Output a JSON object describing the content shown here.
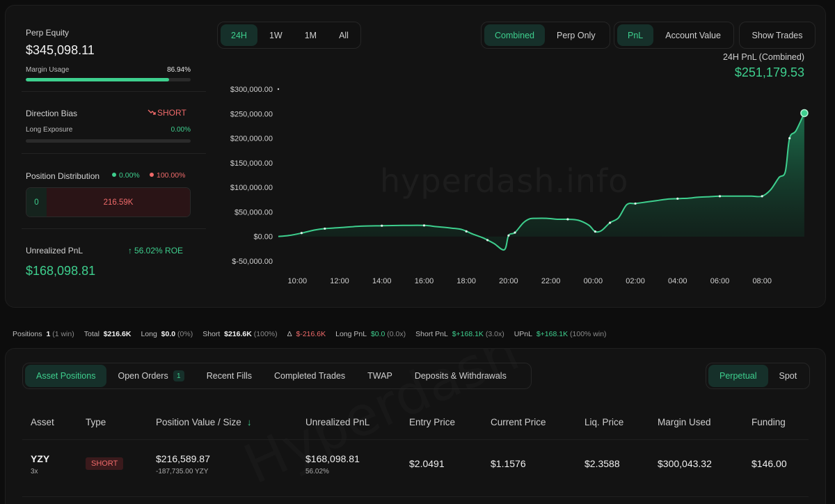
{
  "summary": {
    "perp_equity_label": "Perp Equity",
    "perp_equity_value": "$345,098.11",
    "margin_usage_label": "Margin Usage",
    "margin_usage_value": "86.94%",
    "margin_usage_fraction": 0.8694,
    "direction_bias_label": "Direction Bias",
    "direction_bias_value": "SHORT",
    "long_exposure_label": "Long Exposure",
    "long_exposure_value": "0.00%",
    "long_exposure_fraction": 0.0,
    "position_distribution_label": "Position Distribution",
    "dist_long_pct": "0.00%",
    "dist_short_pct": "100.00%",
    "dist_long_value": "0",
    "dist_short_value": "216.59K",
    "unrealized_pnl_label": "Unrealized PnL",
    "roe_label": "56.02% ROE",
    "unrealized_pnl_value": "$168,098.81"
  },
  "range_tabs": [
    "24H",
    "1W",
    "1M",
    "All"
  ],
  "view_tabs": [
    "Combined",
    "Perp Only"
  ],
  "metric_tabs": [
    "PnL",
    "Account Value"
  ],
  "show_trades_label": "Show Trades",
  "pnl_header": {
    "label": "24H PnL (Combined)",
    "value": "$251,179.53"
  },
  "watermark": "hyperdash.info",
  "colors": {
    "accent": "#3ecf8e",
    "negative": "#ef6a6a",
    "background": "#0d0d0d"
  },
  "chart_data": {
    "type": "area",
    "y_tick_labels": [
      "$300,000.00",
      "$250,000.00",
      "$200,000.00",
      "$150,000.00",
      "$100,000.00",
      "$50,000.00",
      "$0.00",
      "$-50,000.00"
    ],
    "y_ticks": [
      300000,
      250000,
      200000,
      150000,
      100000,
      50000,
      0,
      -50000
    ],
    "ylim": [
      -50000,
      300000
    ],
    "x_tick_labels": [
      "10:00",
      "12:00",
      "14:00",
      "16:00",
      "18:00",
      "20:00",
      "22:00",
      "00:00",
      "02:00",
      "04:00",
      "06:00",
      "08:00"
    ],
    "x_tick_hours": [
      10,
      12,
      14,
      16,
      18,
      20,
      22,
      24,
      26,
      28,
      30,
      32
    ],
    "xlim": [
      9.1,
      34.2
    ],
    "hours": [
      9.1,
      9.6,
      10.2,
      10.8,
      11.3,
      12.0,
      13.0,
      14.0,
      15.0,
      16.0,
      16.6,
      17.3,
      17.8,
      18.3,
      18.8,
      19.3,
      19.8,
      20.0,
      20.3,
      20.7,
      21.0,
      21.3,
      21.8,
      22.3,
      22.8,
      23.3,
      23.8,
      24.1,
      24.4,
      24.8,
      25.2,
      25.6,
      26.0,
      26.5,
      27.0,
      27.5,
      28.0,
      28.5,
      29.0,
      29.5,
      30.0,
      30.5,
      31.0,
      31.5,
      32.0,
      32.4,
      32.8,
      33.1,
      33.3,
      33.6,
      34.0
    ],
    "values": [
      0,
      2000,
      7000,
      13000,
      16000,
      18000,
      21000,
      22000,
      22500,
      22500,
      20000,
      17000,
      14000,
      5000,
      -3000,
      -14000,
      -27000,
      2000,
      8000,
      28000,
      36000,
      37000,
      37000,
      35000,
      35000,
      33000,
      23000,
      10000,
      12000,
      28000,
      38000,
      65000,
      67000,
      70000,
      73000,
      76000,
      77000,
      78000,
      80000,
      81000,
      82000,
      82000,
      82000,
      82000,
      82000,
      95000,
      120000,
      132000,
      200000,
      215000,
      251179.53
    ],
    "marker_hours": [
      10.2,
      11.3,
      14.0,
      16.0,
      18.0,
      19.0,
      20.0,
      20.3,
      22.8,
      24.1,
      24.8,
      26.0,
      28.0,
      30.0,
      32.0,
      33.3,
      34.0
    ],
    "grid": false,
    "legend": "none"
  },
  "stats_bar": {
    "positions_label": "Positions",
    "positions_value": "1",
    "positions_note": "(1 win)",
    "total_label": "Total",
    "total_value": "$216.6K",
    "long_label": "Long",
    "long_value": "$0.0",
    "long_note": "(0%)",
    "short_label": "Short",
    "short_value": "$216.6K",
    "short_note": "(100%)",
    "delta_label": "Δ",
    "delta_value": "$-216.6K",
    "long_pnl_label": "Long PnL",
    "long_pnl_value": "$0.0",
    "long_pnl_note": "(0.0x)",
    "short_pnl_label": "Short PnL",
    "short_pnl_value": "$+168.1K",
    "short_pnl_note": "(3.0x)",
    "upnl_label": "UPnL",
    "upnl_value": "$+168.1K",
    "upnl_note": "(100% win)"
  },
  "position_tabs": [
    "Asset Positions",
    "Open Orders",
    "Recent Fills",
    "Completed Trades",
    "TWAP",
    "Deposits & Withdrawals"
  ],
  "open_orders_count": "1",
  "market_tabs": [
    "Perpetual",
    "Spot"
  ],
  "table": {
    "headers": [
      "Asset",
      "Type",
      "Position Value / Size",
      "Unrealized PnL",
      "Entry Price",
      "Current Price",
      "Liq. Price",
      "Margin Used",
      "Funding"
    ],
    "rows": [
      {
        "asset": "YZY",
        "leverage": "3x",
        "type": "SHORT",
        "position_value": "$216,589.87",
        "position_size": "-187,735.00 YZY",
        "unrealized_pnl": "$168,098.81",
        "unrealized_pnl_pct": "56.02%",
        "entry_price": "$2.0491",
        "current_price": "$1.1576",
        "liq_price": "$2.3588",
        "margin_used": "$300,043.32",
        "funding": "$146.00"
      }
    ]
  },
  "table_watermark": "Hyperdash"
}
